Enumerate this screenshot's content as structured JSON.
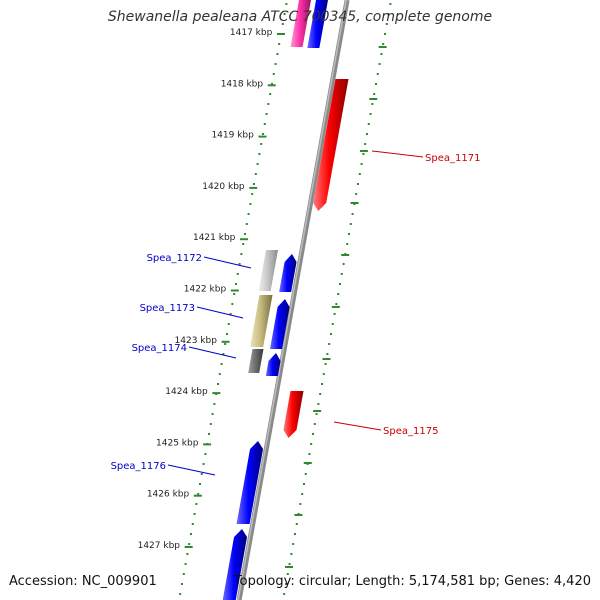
{
  "title": "Shewanella pealeana ATCC 700345, complete genome",
  "accession_text": "Accession: NC_009901",
  "summary_text": "Topology: circular; Length: 5,174,581 bp; Genes: 4,420",
  "colors": {
    "backbone": "#8a8a8a",
    "ticks": "#2f8a2f",
    "reverse_gene": "#0000ff",
    "forward_gene": "#ff0000",
    "label_reverse": "#0000cc",
    "label_forward": "#cc0000",
    "pink_gene": "#ff33aa",
    "gray_light": "#c8c8c8",
    "gray_dark": "#707070",
    "olive": "#c8bc80"
  },
  "kbp_labels": [
    "1417 kbp",
    "1418 kbp",
    "1419 kbp",
    "1420 kbp",
    "1421 kbp",
    "1422 kbp",
    "1423 kbp",
    "1424 kbp",
    "1425 kbp",
    "1426 kbp",
    "1427 kbp"
  ],
  "gene_labels": [
    {
      "text": "Spea_1171",
      "strand": "forward"
    },
    {
      "text": "Spea_1172",
      "strand": "reverse"
    },
    {
      "text": "Spea_1173",
      "strand": "reverse"
    },
    {
      "text": "Spea_1174",
      "strand": "reverse"
    },
    {
      "text": "Spea_1175",
      "strand": "forward"
    },
    {
      "text": "Spea_1176",
      "strand": "reverse"
    }
  ]
}
